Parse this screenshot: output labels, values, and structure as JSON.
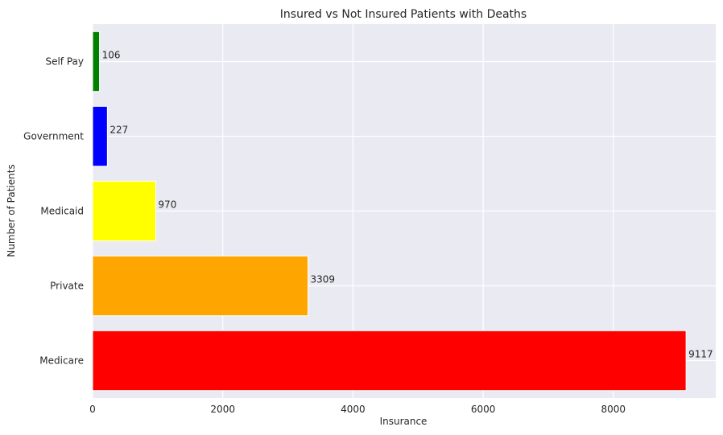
{
  "chart_data": {
    "type": "bar",
    "orientation": "horizontal",
    "title": "Insured vs Not Insured Patients with Deaths",
    "xlabel": "Insurance",
    "ylabel": "Number of Patients",
    "categories": [
      "Medicare",
      "Private",
      "Medicaid",
      "Government",
      "Self Pay"
    ],
    "values": [
      9117,
      3309,
      970,
      227,
      106
    ],
    "colors": [
      "#ff0000",
      "#ffa500",
      "#ffff00",
      "#0000ff",
      "#008000"
    ],
    "x_ticks": [
      0,
      2000,
      4000,
      6000,
      8000
    ],
    "xlim": [
      0,
      9573
    ],
    "grid": true,
    "background": "#eaeaf2"
  }
}
